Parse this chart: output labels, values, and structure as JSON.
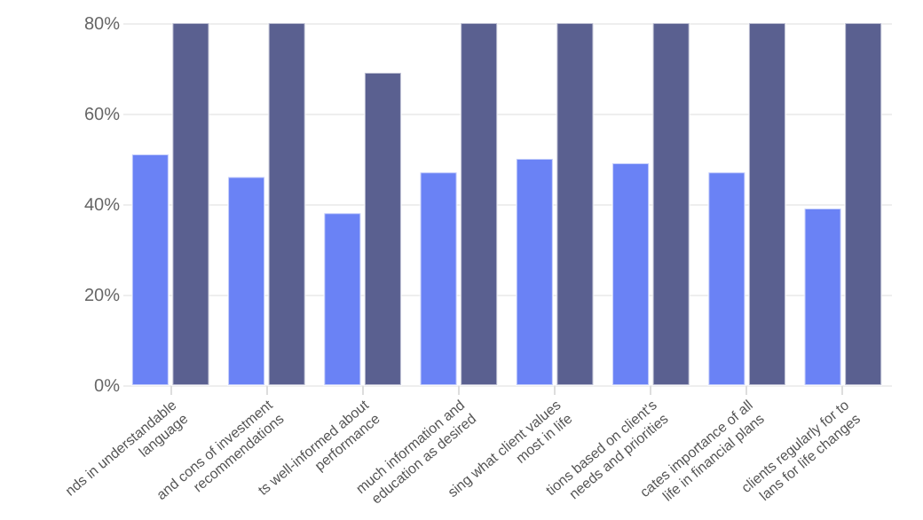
{
  "chart_data": {
    "type": "bar",
    "categories": [
      "nds in understandable\nlanguage",
      "and cons of investment\nrecommendations",
      "ts well-informed about\nperformance",
      "much information and\neducation as desired",
      "sing what client values\nmost in life",
      "tions based on client's\nneeds and priorities",
      "cates importance of all\nlife in financial plans",
      "clients regularly for to\nlans for life changes"
    ],
    "series": [
      {
        "color": "#6a82f5",
        "values": [
          51,
          46,
          38,
          47,
          50,
          49,
          47,
          39
        ]
      },
      {
        "color": "#5a6090",
        "values": [
          80,
          80,
          69,
          80,
          80,
          80,
          80,
          80
        ]
      }
    ],
    "ylim": [
      0,
      80
    ],
    "yticks": [
      {
        "value": 0,
        "label": "0%"
      },
      {
        "value": 20,
        "label": "20%"
      },
      {
        "value": 40,
        "label": "40%"
      },
      {
        "value": 60,
        "label": "60%"
      },
      {
        "value": 80,
        "label": "80%"
      }
    ],
    "grid": "y",
    "legend": false
  }
}
